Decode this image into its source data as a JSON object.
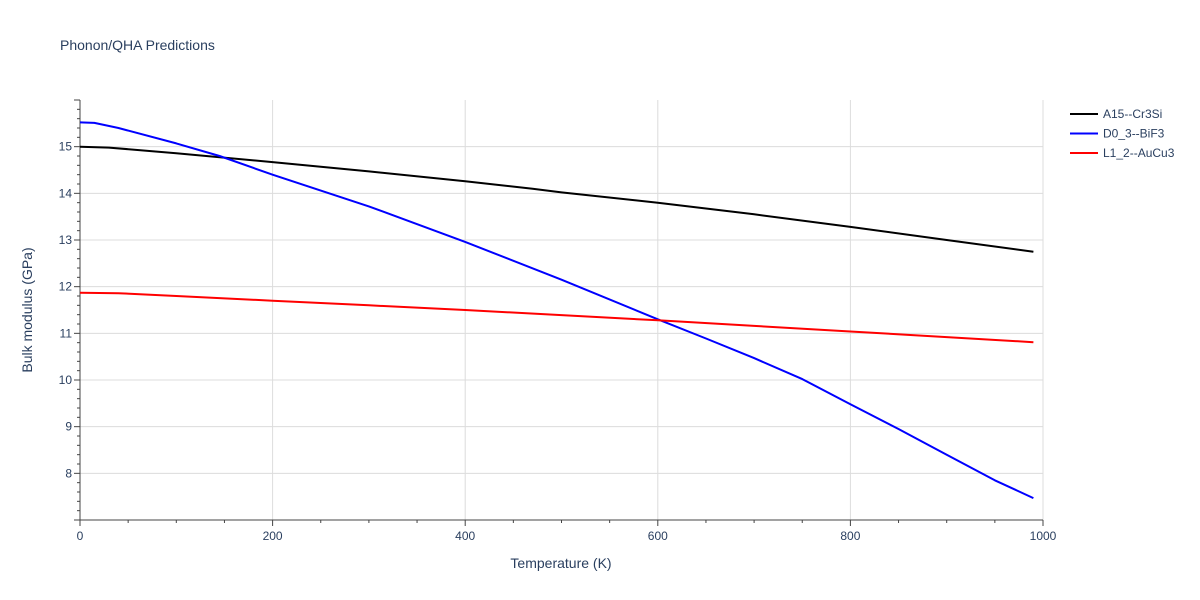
{
  "chart_data": {
    "type": "line",
    "title": "Phonon/QHA Predictions",
    "xlabel": "Temperature (K)",
    "ylabel": "Bulk modulus (GPa)",
    "xlim": [
      0,
      1000
    ],
    "ylim": [
      7,
      16
    ],
    "x_ticks": [
      0,
      200,
      400,
      600,
      800,
      1000
    ],
    "y_ticks": [
      8,
      9,
      10,
      11,
      12,
      13,
      14,
      15
    ],
    "grid": true,
    "legend_position": "top-right",
    "series": [
      {
        "name": "A15--Cr3Si",
        "color": "#000000",
        "x": [
          0,
          30,
          100,
          200,
          300,
          400,
          470,
          500,
          600,
          700,
          800,
          900,
          990
        ],
        "y": [
          15.0,
          14.98,
          14.86,
          14.67,
          14.47,
          14.26,
          14.1,
          14.02,
          13.8,
          13.55,
          13.28,
          13.0,
          12.75
        ]
      },
      {
        "name": "D0_3--BiF3",
        "color": "#0000ff",
        "x": [
          0,
          15,
          40,
          100,
          145,
          200,
          300,
          400,
          500,
          600,
          650,
          700,
          750,
          800,
          850,
          900,
          950,
          990
        ],
        "y": [
          15.52,
          15.51,
          15.4,
          15.07,
          14.8,
          14.4,
          13.72,
          12.96,
          12.15,
          11.3,
          10.89,
          10.47,
          10.02,
          9.48,
          8.95,
          8.4,
          7.85,
          7.47
        ]
      },
      {
        "name": "L1_2--AuCu3",
        "color": "#ff0000",
        "x": [
          0,
          40,
          100,
          200,
          300,
          400,
          500,
          600,
          700,
          800,
          900,
          990
        ],
        "y": [
          11.87,
          11.86,
          11.8,
          11.7,
          11.6,
          11.5,
          11.39,
          11.28,
          11.16,
          11.04,
          10.92,
          10.81
        ]
      }
    ]
  }
}
